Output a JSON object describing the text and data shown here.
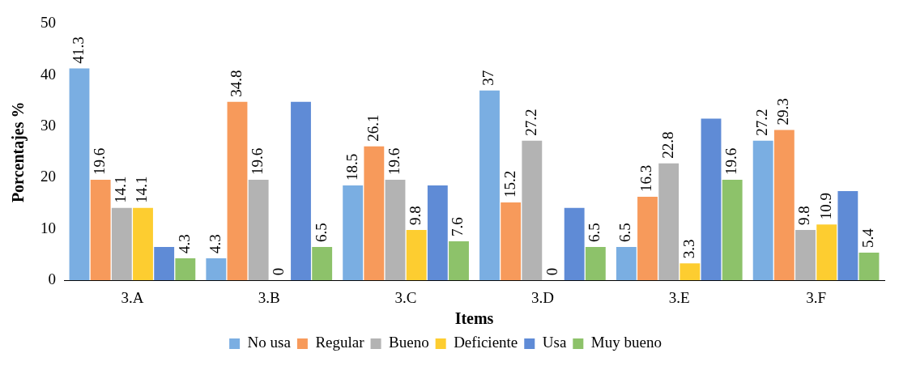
{
  "chart_data": {
    "type": "bar",
    "xlabel": "Items",
    "ylabel": "Porcentajes %",
    "categories": [
      "3.A",
      "3.B",
      "3.C",
      "3.D",
      "3.E",
      "3.F"
    ],
    "ylim": [
      0,
      50
    ],
    "yticks": [
      0,
      10,
      20,
      30,
      40,
      50
    ],
    "grid": false,
    "legend": "bottom",
    "series": [
      {
        "name": "No usa",
        "color": "#7aaee2",
        "values": [
          41.3,
          4.3,
          18.5,
          37,
          6.5,
          27.2
        ],
        "value_labels": [
          "41.3",
          "4.3",
          "18.5",
          "37",
          "6.5",
          "27.2"
        ]
      },
      {
        "name": "Regular",
        "color": "#f79a5b",
        "values": [
          19.6,
          34.8,
          26.1,
          15.2,
          16.3,
          29.3
        ],
        "value_labels": [
          "19.6",
          "34.8",
          "26.1",
          "15.2",
          "16.3",
          "29.3"
        ]
      },
      {
        "name": "Bueno",
        "color": "#b3b3b3",
        "values": [
          14.1,
          19.6,
          19.6,
          27.2,
          22.8,
          9.8
        ],
        "value_labels": [
          "14.1",
          "19.6",
          "19.6",
          "27.2",
          "22.8",
          "9.8"
        ]
      },
      {
        "name": "Deficiente",
        "color": "#fdcd30",
        "values": [
          14.1,
          0,
          9.8,
          0,
          3.3,
          10.9
        ],
        "value_labels": [
          "14.1",
          "0",
          "9.8",
          "0",
          "3.3",
          "10.9"
        ]
      },
      {
        "name": "Usa",
        "color": "#5f8bd6",
        "values": [
          6.5,
          34.8,
          18.5,
          14.1,
          31.5,
          17.4
        ]
      },
      {
        "name": "Muy bueno",
        "color": "#8dc26a",
        "values": [
          4.3,
          6.5,
          7.6,
          6.5,
          19.6,
          5.4
        ],
        "value_labels": [
          "4.3",
          "6.5",
          "7.6",
          "6.5",
          "19.6",
          "5.4"
        ]
      }
    ]
  }
}
